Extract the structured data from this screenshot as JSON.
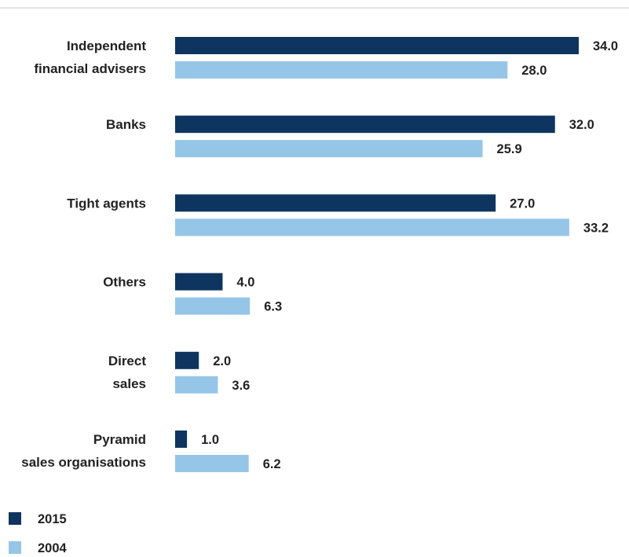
{
  "chart_data": {
    "type": "bar",
    "orientation": "horizontal",
    "categories": [
      [
        "Independent",
        "financial advisers"
      ],
      [
        "Banks"
      ],
      [
        "Tight agents"
      ],
      [
        "Others"
      ],
      [
        "Direct",
        "sales"
      ],
      [
        "Pyramid",
        "sales organisations"
      ]
    ],
    "series": [
      {
        "name": "2015",
        "color": "#0d3560",
        "values": [
          34.0,
          32.0,
          27.0,
          4.0,
          2.0,
          1.0
        ],
        "labels": [
          "34.0",
          "32.0",
          "27.0",
          "4.0",
          "2.0",
          "1.0"
        ]
      },
      {
        "name": "2004",
        "color": "#95c6e8",
        "values": [
          28.0,
          25.9,
          33.2,
          6.3,
          3.6,
          6.2
        ],
        "labels": [
          "28.0",
          "25.9",
          "33.2",
          "6.3",
          "3.6",
          "6.2"
        ]
      }
    ],
    "xlim": [
      0,
      34
    ],
    "grid": false,
    "legend_position": "bottom-left"
  },
  "colors": {
    "top_rule": "#c8c8c8",
    "text": "#222222"
  }
}
